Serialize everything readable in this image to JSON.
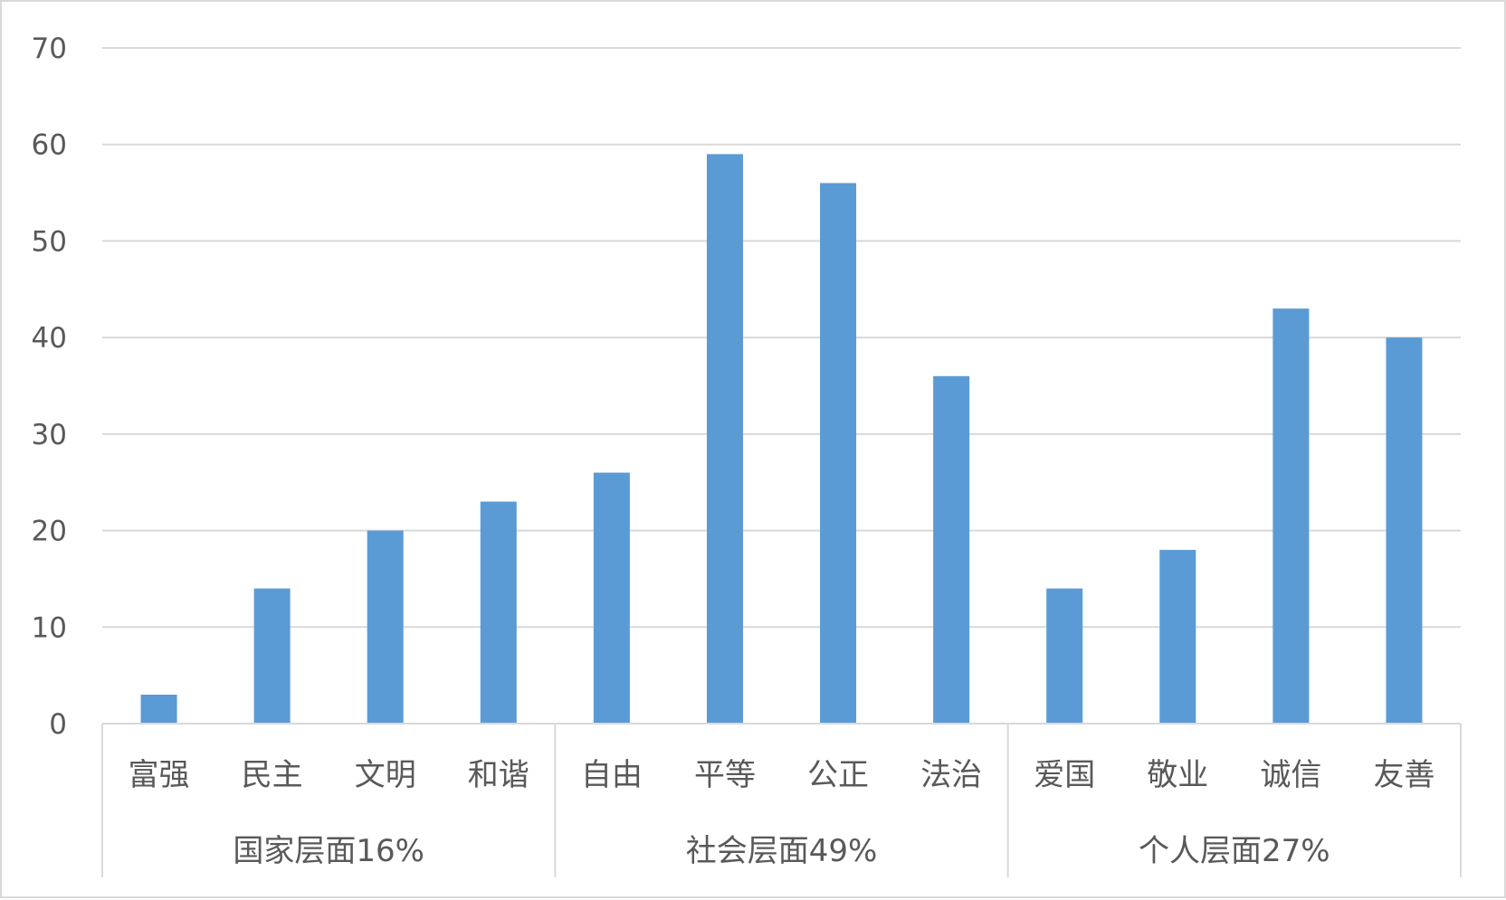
{
  "chart_data": {
    "type": "bar",
    "title": "",
    "xlabel": "",
    "ylabel": "",
    "ylim": [
      0,
      70
    ],
    "yticks": [
      0,
      10,
      20,
      30,
      40,
      50,
      60,
      70
    ],
    "grid": true,
    "legend": "none",
    "bar_color": "#5b9bd5",
    "categories": [
      "富强",
      "民主",
      "文明",
      "和谐",
      "自由",
      "平等",
      "公正",
      "法治",
      "爱国",
      "敬业",
      "诚信",
      "友善"
    ],
    "groups": [
      {
        "label": "国家层面16%",
        "count": 4
      },
      {
        "label": "社会层面49%",
        "count": 4
      },
      {
        "label": "个人层面27%",
        "count": 4
      }
    ],
    "values": [
      3,
      14,
      20,
      23,
      26,
      59,
      56,
      36,
      14,
      18,
      43,
      40
    ]
  }
}
